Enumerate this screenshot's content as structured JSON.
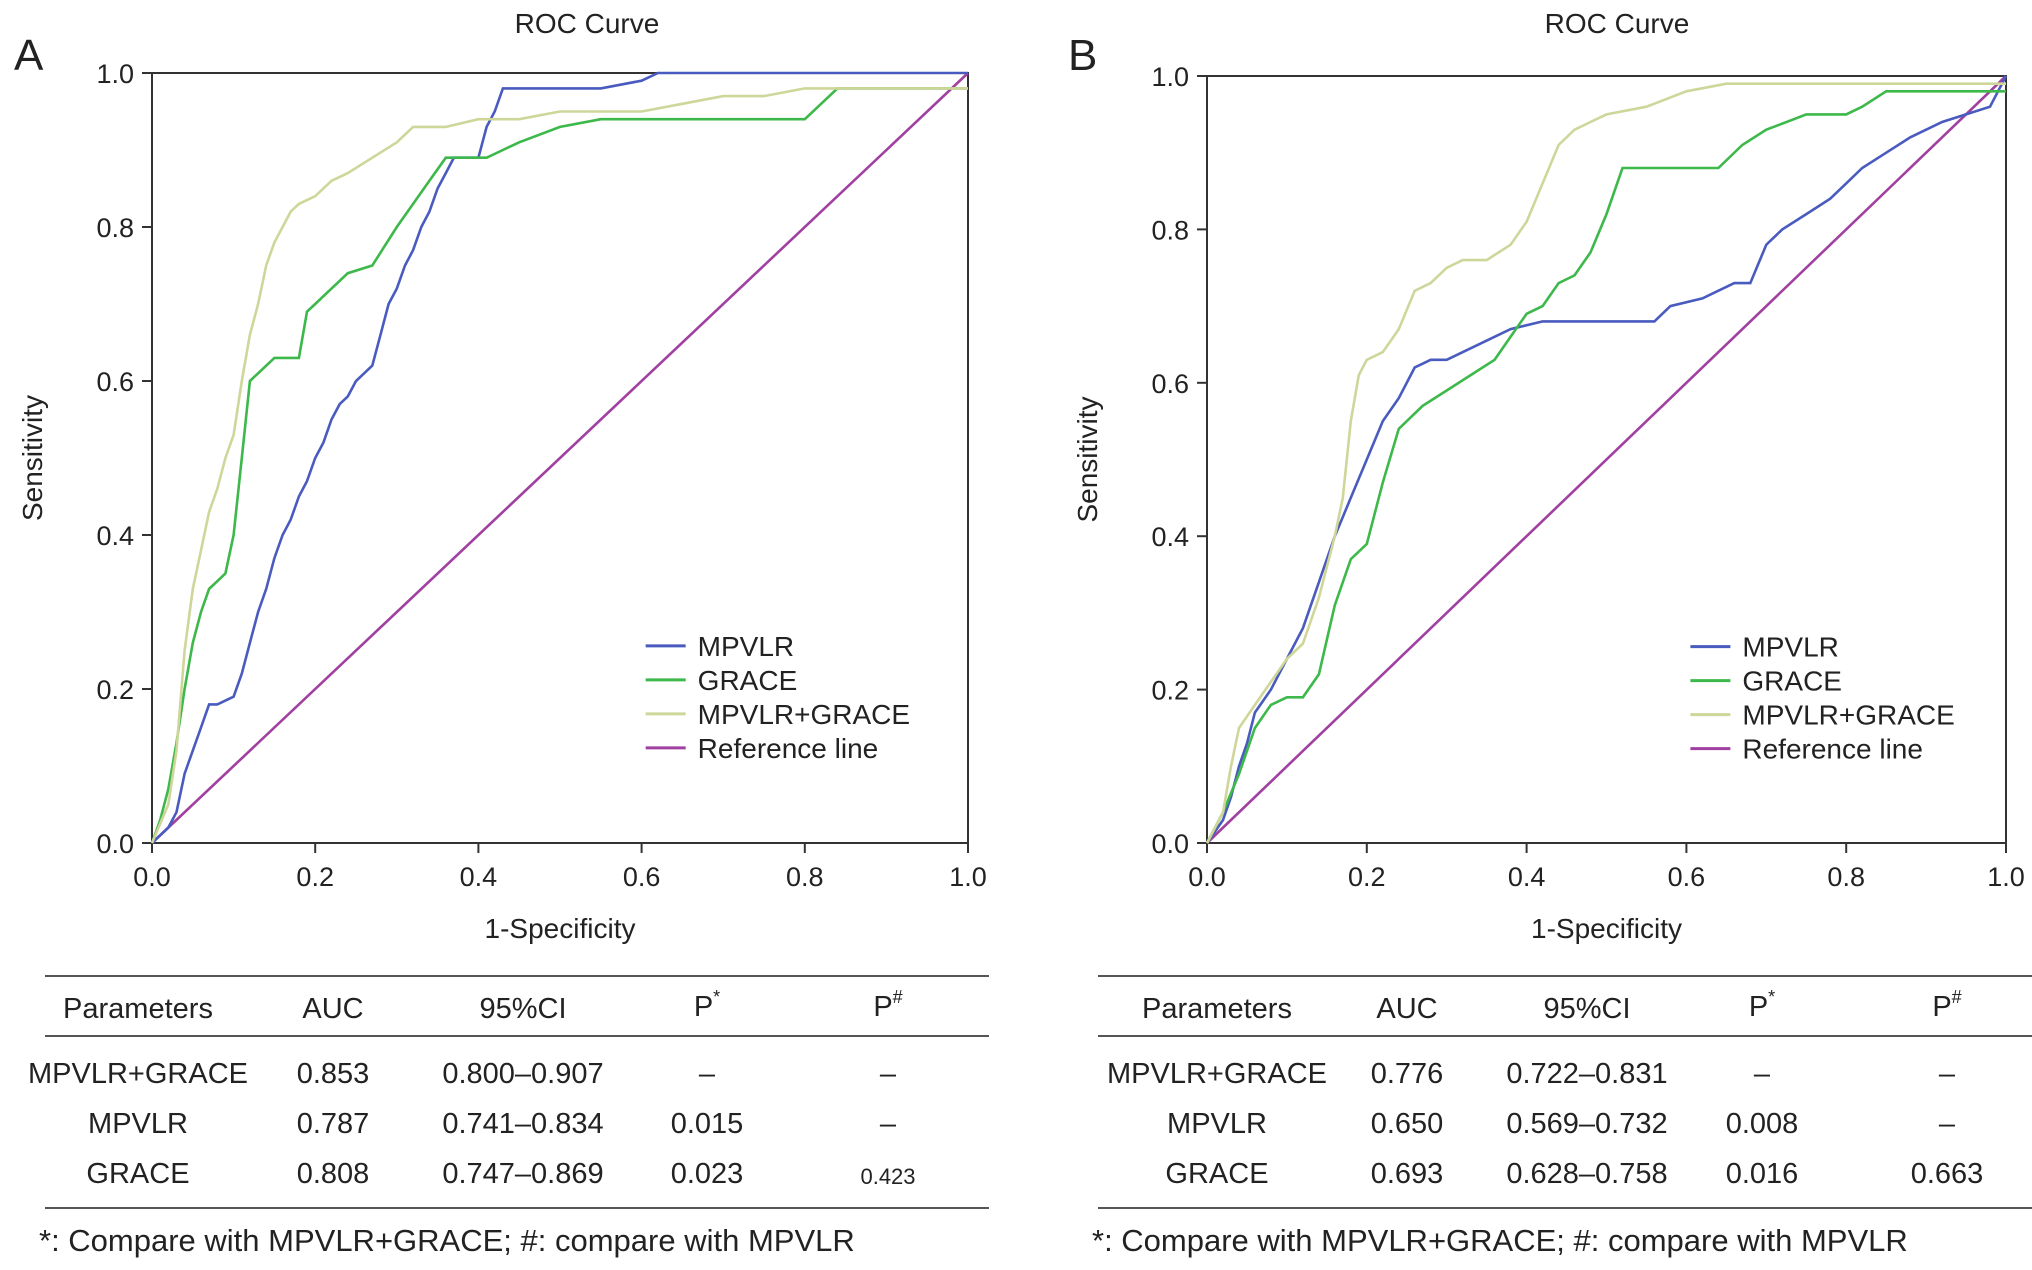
{
  "chart_data": [
    {
      "panel_label": "A",
      "type": "line",
      "title": "ROC Curve",
      "xlabel": "1-Specificity",
      "ylabel": "Sensitivity",
      "xlim": [
        0,
        1
      ],
      "ylim": [
        0,
        1
      ],
      "xticks": [
        "0.0",
        "0.2",
        "0.4",
        "0.6",
        "0.8",
        "1.0"
      ],
      "yticks": [
        "0.0",
        "0.2",
        "0.4",
        "0.6",
        "0.8",
        "1.0"
      ],
      "legend_position": "bottom-right",
      "series": [
        {
          "name": "MPVLR",
          "color": "#4a5bbf",
          "x": [
            0,
            0.02,
            0.03,
            0.04,
            0.05,
            0.06,
            0.07,
            0.08,
            0.1,
            0.11,
            0.12,
            0.13,
            0.14,
            0.15,
            0.16,
            0.17,
            0.18,
            0.19,
            0.2,
            0.21,
            0.22,
            0.23,
            0.24,
            0.25,
            0.27,
            0.28,
            0.29,
            0.3,
            0.31,
            0.32,
            0.33,
            0.34,
            0.35,
            0.36,
            0.37,
            0.38,
            0.39,
            0.4,
            0.41,
            0.42,
            0.43,
            0.45,
            0.5,
            0.55,
            0.6,
            0.62,
            0.65,
            0.7,
            0.8,
            0.9,
            1.0
          ],
          "y": [
            0,
            0.02,
            0.04,
            0.09,
            0.12,
            0.15,
            0.18,
            0.18,
            0.19,
            0.22,
            0.26,
            0.3,
            0.33,
            0.37,
            0.4,
            0.42,
            0.45,
            0.47,
            0.5,
            0.52,
            0.55,
            0.57,
            0.58,
            0.6,
            0.62,
            0.66,
            0.7,
            0.72,
            0.75,
            0.77,
            0.8,
            0.82,
            0.85,
            0.87,
            0.89,
            0.89,
            0.89,
            0.89,
            0.93,
            0.95,
            0.98,
            0.98,
            0.98,
            0.98,
            0.99,
            1.0,
            1.0,
            1.0,
            1.0,
            1.0,
            1.0
          ]
        },
        {
          "name": "GRACE",
          "color": "#3db84a",
          "x": [
            0,
            0.01,
            0.02,
            0.03,
            0.04,
            0.05,
            0.06,
            0.07,
            0.08,
            0.09,
            0.1,
            0.11,
            0.12,
            0.13,
            0.15,
            0.18,
            0.19,
            0.2,
            0.22,
            0.24,
            0.27,
            0.3,
            0.32,
            0.34,
            0.36,
            0.38,
            0.41,
            0.43,
            0.45,
            0.5,
            0.55,
            0.6,
            0.65,
            0.7,
            0.8,
            0.82,
            0.84,
            0.9,
            1.0
          ],
          "y": [
            0,
            0.03,
            0.07,
            0.13,
            0.2,
            0.26,
            0.3,
            0.33,
            0.34,
            0.35,
            0.4,
            0.5,
            0.6,
            0.61,
            0.63,
            0.63,
            0.69,
            0.7,
            0.72,
            0.74,
            0.75,
            0.8,
            0.83,
            0.86,
            0.89,
            0.89,
            0.89,
            0.9,
            0.91,
            0.93,
            0.94,
            0.94,
            0.94,
            0.94,
            0.94,
            0.96,
            0.98,
            0.98,
            0.98
          ]
        },
        {
          "name": "MPVLR+GRACE",
          "color": "#cfd69a",
          "x": [
            0,
            0.02,
            0.03,
            0.04,
            0.05,
            0.06,
            0.07,
            0.08,
            0.09,
            0.1,
            0.11,
            0.12,
            0.13,
            0.14,
            0.15,
            0.16,
            0.17,
            0.18,
            0.2,
            0.22,
            0.24,
            0.27,
            0.3,
            0.32,
            0.36,
            0.4,
            0.45,
            0.5,
            0.55,
            0.6,
            0.65,
            0.7,
            0.75,
            0.8,
            0.85,
            0.9,
            1.0
          ],
          "y": [
            0,
            0.05,
            0.12,
            0.25,
            0.33,
            0.38,
            0.43,
            0.46,
            0.5,
            0.53,
            0.6,
            0.66,
            0.7,
            0.75,
            0.78,
            0.8,
            0.82,
            0.83,
            0.84,
            0.86,
            0.87,
            0.89,
            0.91,
            0.93,
            0.93,
            0.94,
            0.94,
            0.95,
            0.95,
            0.95,
            0.96,
            0.97,
            0.97,
            0.98,
            0.98,
            0.98,
            0.98
          ]
        },
        {
          "name": "Reference line",
          "color": "#a040a0",
          "x": [
            0,
            1
          ],
          "y": [
            0,
            1
          ]
        }
      ]
    },
    {
      "panel_label": "B",
      "type": "line",
      "title": "ROC Curve",
      "xlabel": "1-Specificity",
      "ylabel": "Sensitivity",
      "xlim": [
        0,
        1
      ],
      "ylim": [
        0,
        1
      ],
      "xticks": [
        "0.0",
        "0.2",
        "0.4",
        "0.6",
        "0.8",
        "1.0"
      ],
      "yticks": [
        "0.0",
        "0.2",
        "0.4",
        "0.6",
        "0.8",
        "1.0"
      ],
      "legend_position": "bottom-right",
      "series": [
        {
          "name": "MPVLR",
          "color": "#4a5bbf",
          "x": [
            0,
            0.02,
            0.03,
            0.04,
            0.05,
            0.06,
            0.08,
            0.1,
            0.12,
            0.14,
            0.16,
            0.18,
            0.2,
            0.22,
            0.24,
            0.26,
            0.28,
            0.3,
            0.34,
            0.38,
            0.42,
            0.46,
            0.5,
            0.54,
            0.56,
            0.58,
            0.62,
            0.66,
            0.68,
            0.7,
            0.72,
            0.75,
            0.78,
            0.8,
            0.82,
            0.85,
            0.88,
            0.9,
            0.92,
            0.95,
            0.98,
            1.0
          ],
          "y": [
            0,
            0.03,
            0.06,
            0.1,
            0.13,
            0.17,
            0.2,
            0.24,
            0.28,
            0.34,
            0.4,
            0.45,
            0.5,
            0.55,
            0.58,
            0.62,
            0.63,
            0.63,
            0.65,
            0.67,
            0.68,
            0.68,
            0.68,
            0.68,
            0.68,
            0.7,
            0.71,
            0.73,
            0.73,
            0.78,
            0.8,
            0.82,
            0.84,
            0.86,
            0.88,
            0.9,
            0.92,
            0.93,
            0.94,
            0.95,
            0.96,
            1.0
          ]
        },
        {
          "name": "GRACE",
          "color": "#3db84a",
          "x": [
            0,
            0.02,
            0.04,
            0.06,
            0.08,
            0.1,
            0.12,
            0.14,
            0.16,
            0.18,
            0.2,
            0.22,
            0.24,
            0.27,
            0.3,
            0.33,
            0.36,
            0.38,
            0.4,
            0.42,
            0.44,
            0.46,
            0.48,
            0.5,
            0.52,
            0.55,
            0.6,
            0.64,
            0.67,
            0.7,
            0.75,
            0.8,
            0.82,
            0.85,
            0.9,
            1.0
          ],
          "y": [
            0,
            0.04,
            0.09,
            0.15,
            0.18,
            0.19,
            0.19,
            0.22,
            0.31,
            0.37,
            0.39,
            0.47,
            0.54,
            0.57,
            0.59,
            0.61,
            0.63,
            0.66,
            0.69,
            0.7,
            0.73,
            0.74,
            0.77,
            0.82,
            0.88,
            0.88,
            0.88,
            0.88,
            0.91,
            0.93,
            0.95,
            0.95,
            0.96,
            0.98,
            0.98,
            0.98
          ]
        },
        {
          "name": "MPVLR+GRACE",
          "color": "#cfd69a",
          "x": [
            0,
            0.02,
            0.03,
            0.04,
            0.06,
            0.08,
            0.1,
            0.12,
            0.14,
            0.16,
            0.17,
            0.18,
            0.19,
            0.2,
            0.22,
            0.24,
            0.26,
            0.28,
            0.3,
            0.32,
            0.35,
            0.38,
            0.4,
            0.42,
            0.44,
            0.46,
            0.48,
            0.5,
            0.55,
            0.6,
            0.65,
            0.7,
            0.8,
            0.9,
            1.0
          ],
          "y": [
            0,
            0.04,
            0.1,
            0.15,
            0.18,
            0.21,
            0.24,
            0.26,
            0.32,
            0.4,
            0.45,
            0.55,
            0.61,
            0.63,
            0.64,
            0.67,
            0.72,
            0.73,
            0.75,
            0.76,
            0.76,
            0.78,
            0.81,
            0.86,
            0.91,
            0.93,
            0.94,
            0.95,
            0.96,
            0.98,
            0.99,
            0.99,
            0.99,
            0.99,
            0.99
          ]
        },
        {
          "name": "Reference line",
          "color": "#a040a0",
          "x": [
            0,
            1
          ],
          "y": [
            0,
            1
          ]
        }
      ]
    }
  ],
  "tables": [
    {
      "headers": [
        "Parameters",
        "AUC",
        "95%CI",
        "P",
        "P"
      ],
      "header_sups": [
        "",
        "",
        "",
        "*",
        "#"
      ],
      "rows": [
        [
          "MPVLR+GRACE",
          "0.853",
          "0.800–0.907",
          "–",
          "–"
        ],
        [
          "MPVLR",
          "0.787",
          "0.741–0.834",
          "0.015",
          "–"
        ],
        [
          "GRACE",
          "0.808",
          "0.747–0.869",
          "0.023",
          "0.423"
        ]
      ],
      "footnote": "*: Compare with MPVLR+GRACE; #: compare with MPVLR"
    },
    {
      "headers": [
        "Parameters",
        "AUC",
        "95%CI",
        "P",
        "P"
      ],
      "header_sups": [
        "",
        "",
        "",
        "*",
        "#"
      ],
      "rows": [
        [
          "MPVLR+GRACE",
          "0.776",
          "0.722–0.831",
          "–",
          "–"
        ],
        [
          "MPVLR",
          "0.650",
          "0.569–0.732",
          "0.008",
          "–"
        ],
        [
          "GRACE",
          "0.693",
          "0.628–0.758",
          "0.016",
          "0.663"
        ]
      ],
      "footnote": "*: Compare with MPVLR+GRACE; #: compare with MPVLR"
    }
  ]
}
